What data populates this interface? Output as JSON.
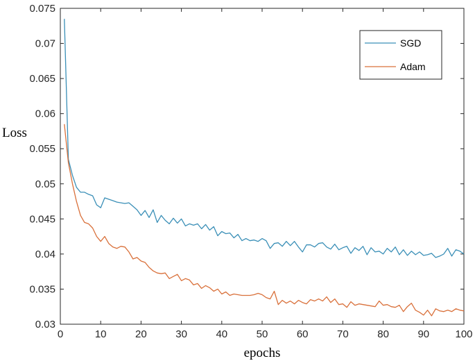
{
  "chart_data": {
    "type": "line",
    "xlabel": "epochs",
    "ylabel": "Loss",
    "xlim": [
      0,
      100
    ],
    "ylim": [
      0.03,
      0.075
    ],
    "x_ticks": [
      0,
      10,
      20,
      30,
      40,
      50,
      60,
      70,
      80,
      90,
      100
    ],
    "x_tick_labels": [
      "0",
      "10",
      "20",
      "30",
      "40",
      "50",
      "60",
      "70",
      "80",
      "90",
      "100"
    ],
    "y_ticks": [
      0.03,
      0.035,
      0.04,
      0.045,
      0.05,
      0.055,
      0.06,
      0.065,
      0.07,
      0.075
    ],
    "y_tick_labels": [
      "0.03",
      "0.035",
      "0.04",
      "0.045",
      "0.05",
      "0.055",
      "0.06",
      "0.065",
      "0.07",
      "0.075"
    ],
    "grid": false,
    "legend_position": "top-right",
    "x": [
      1,
      2,
      3,
      4,
      5,
      6,
      7,
      8,
      9,
      10,
      11,
      12,
      13,
      14,
      15,
      16,
      17,
      18,
      19,
      20,
      21,
      22,
      23,
      24,
      25,
      26,
      27,
      28,
      29,
      30,
      31,
      32,
      33,
      34,
      35,
      36,
      37,
      38,
      39,
      40,
      41,
      42,
      43,
      44,
      45,
      46,
      47,
      48,
      49,
      50,
      51,
      52,
      53,
      54,
      55,
      56,
      57,
      58,
      59,
      60,
      61,
      62,
      63,
      64,
      65,
      66,
      67,
      68,
      69,
      70,
      71,
      72,
      73,
      74,
      75,
      76,
      77,
      78,
      79,
      80,
      81,
      82,
      83,
      84,
      85,
      86,
      87,
      88,
      89,
      90,
      91,
      92,
      93,
      94,
      95,
      96,
      97,
      98,
      99,
      100
    ],
    "series": [
      {
        "name": "SGD",
        "color": "#3a8fb7",
        "values": [
          0.0735,
          0.0535,
          0.0512,
          0.0495,
          0.0488,
          0.0488,
          0.0485,
          0.0483,
          0.047,
          0.0466,
          0.048,
          0.0478,
          0.0476,
          0.0474,
          0.0473,
          0.0472,
          0.0473,
          0.0468,
          0.0463,
          0.0455,
          0.0462,
          0.0452,
          0.0463,
          0.0445,
          0.0455,
          0.0448,
          0.0443,
          0.0451,
          0.0444,
          0.045,
          0.044,
          0.0443,
          0.0441,
          0.0443,
          0.0436,
          0.0442,
          0.0434,
          0.0439,
          0.0426,
          0.0432,
          0.0429,
          0.043,
          0.0423,
          0.0428,
          0.0419,
          0.0422,
          0.0419,
          0.042,
          0.0418,
          0.0422,
          0.0419,
          0.0408,
          0.0415,
          0.0416,
          0.0411,
          0.0418,
          0.0412,
          0.0418,
          0.041,
          0.0403,
          0.0413,
          0.0413,
          0.041,
          0.0415,
          0.0416,
          0.041,
          0.0407,
          0.0414,
          0.0406,
          0.0409,
          0.0411,
          0.0401,
          0.0409,
          0.0405,
          0.0411,
          0.0399,
          0.0409,
          0.0403,
          0.0404,
          0.04,
          0.0408,
          0.0403,
          0.041,
          0.0399,
          0.0406,
          0.0398,
          0.0404,
          0.0399,
          0.0403,
          0.0398,
          0.0399,
          0.0401,
          0.0395,
          0.0397,
          0.04,
          0.0408,
          0.0397,
          0.0406,
          0.0404,
          0.04
        ]
      },
      {
        "name": "Adam",
        "color": "#d9703a",
        "values": [
          0.0585,
          0.053,
          0.05,
          0.0475,
          0.0455,
          0.0445,
          0.0443,
          0.0437,
          0.0425,
          0.0418,
          0.0425,
          0.0415,
          0.041,
          0.0408,
          0.0411,
          0.041,
          0.0403,
          0.0393,
          0.0395,
          0.039,
          0.0388,
          0.0381,
          0.0376,
          0.0373,
          0.0372,
          0.0373,
          0.0365,
          0.0368,
          0.0371,
          0.0362,
          0.0365,
          0.0363,
          0.0356,
          0.0358,
          0.0351,
          0.0355,
          0.0352,
          0.0347,
          0.035,
          0.0343,
          0.0346,
          0.0341,
          0.0343,
          0.0342,
          0.0341,
          0.0341,
          0.0341,
          0.0342,
          0.0344,
          0.0342,
          0.0338,
          0.0336,
          0.0347,
          0.0328,
          0.0334,
          0.033,
          0.0333,
          0.0329,
          0.0334,
          0.0331,
          0.0329,
          0.0335,
          0.0333,
          0.0336,
          0.0333,
          0.0339,
          0.0331,
          0.0336,
          0.0328,
          0.0329,
          0.0324,
          0.0332,
          0.0327,
          0.0329,
          0.0328,
          0.0327,
          0.0326,
          0.0325,
          0.0333,
          0.0327,
          0.0328,
          0.0325,
          0.0324,
          0.0327,
          0.0318,
          0.0325,
          0.033,
          0.032,
          0.0317,
          0.0313,
          0.032,
          0.0312,
          0.0322,
          0.0319,
          0.0318,
          0.032,
          0.0318,
          0.0322,
          0.032,
          0.0319
        ]
      }
    ]
  }
}
